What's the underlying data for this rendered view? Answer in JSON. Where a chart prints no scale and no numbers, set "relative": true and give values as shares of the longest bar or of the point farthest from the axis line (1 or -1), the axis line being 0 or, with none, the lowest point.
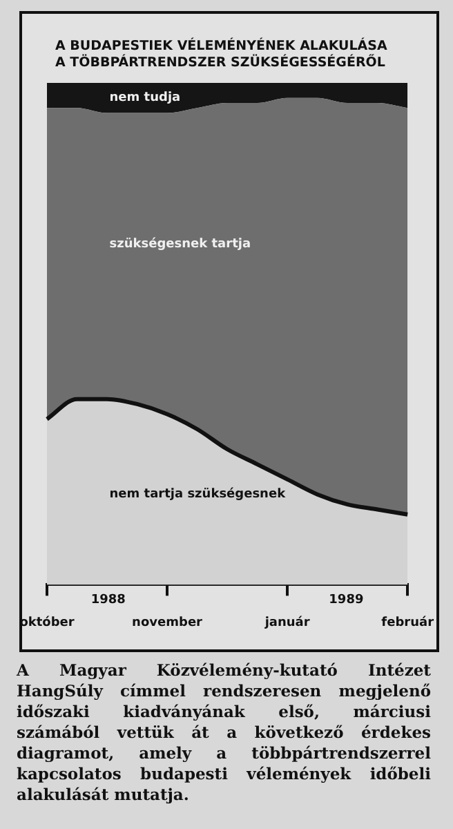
{
  "chart_data": {
    "type": "area",
    "title": "A BUDAPESTIEK VÉLEMÉNYÉNEK ALAKULÁSA A TÖBBPÁRTRENDSZER SZÜKSÉGESSÉGÉRŐL",
    "relative": true,
    "stacked": true,
    "categories": [
      "október",
      null,
      null,
      null,
      "november",
      null,
      null,
      null,
      "január",
      null,
      null,
      null,
      "február"
    ],
    "series": [
      {
        "name": "nem tartja szükségesnek",
        "color": "#d2d2d2",
        "values": [
          0.33,
          0.37,
          0.37,
          0.36,
          0.34,
          0.31,
          0.27,
          0.24,
          0.21,
          0.18,
          0.16,
          0.15,
          0.14
        ]
      },
      {
        "name": "szükségesnek tartja",
        "color": "#6e6e6e",
        "values": [
          0.62,
          0.58,
          0.57,
          0.58,
          0.6,
          0.64,
          0.69,
          0.72,
          0.76,
          0.79,
          0.8,
          0.81,
          0.81
        ]
      },
      {
        "name": "nem tudja",
        "color": "#151515",
        "values": [
          0.05,
          0.05,
          0.06,
          0.06,
          0.06,
          0.05,
          0.04,
          0.04,
          0.03,
          0.03,
          0.04,
          0.04,
          0.05
        ]
      }
    ],
    "annotations": [
      "1988",
      "1989",
      "A Magyar Közvélemény-kutató Intézet HangSúly címmel rendszeresen megjelenő időszaki kiadványának első, márciusi számából vettük át a következő érdekes diagramot, amely a többpártrendszerrel kapcsolatos budapesti vélemények időbeli alakulását mutatja."
    ]
  }
}
